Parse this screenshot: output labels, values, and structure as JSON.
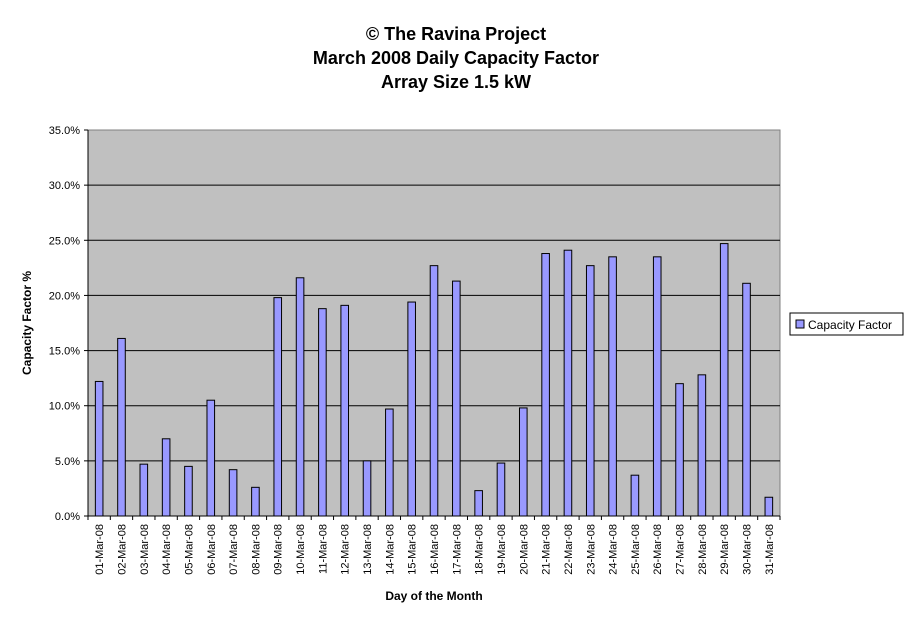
{
  "chart_data": {
    "type": "bar",
    "title_lines": [
      "© The Ravina Project",
      "March 2008 Daily Capacity Factor",
      "Array Size 1.5 kW"
    ],
    "xlabel": "Day of the Month",
    "ylabel": "Capacity Factor %",
    "ylim": [
      0,
      35
    ],
    "yticks": [
      "0.0%",
      "5.0%",
      "10.0%",
      "15.0%",
      "20.0%",
      "25.0%",
      "30.0%",
      "35.0%"
    ],
    "grid": true,
    "legend_position": "right",
    "categories": [
      "01-Mar-08",
      "02-Mar-08",
      "03-Mar-08",
      "04-Mar-08",
      "05-Mar-08",
      "06-Mar-08",
      "07-Mar-08",
      "08-Mar-08",
      "09-Mar-08",
      "10-Mar-08",
      "11-Mar-08",
      "12-Mar-08",
      "13-Mar-08",
      "14-Mar-08",
      "15-Mar-08",
      "16-Mar-08",
      "17-Mar-08",
      "18-Mar-08",
      "19-Mar-08",
      "20-Mar-08",
      "21-Mar-08",
      "22-Mar-08",
      "23-Mar-08",
      "24-Mar-08",
      "25-Mar-08",
      "26-Mar-08",
      "27-Mar-08",
      "28-Mar-08",
      "29-Mar-08",
      "30-Mar-08",
      "31-Mar-08"
    ],
    "series": [
      {
        "name": "Capacity Factor",
        "color": "#9999ff",
        "values": [
          12.2,
          16.1,
          4.7,
          7.0,
          4.5,
          10.5,
          4.2,
          2.6,
          19.8,
          21.6,
          18.8,
          19.1,
          5.0,
          9.7,
          19.4,
          22.7,
          21.3,
          2.3,
          4.8,
          9.8,
          23.8,
          24.1,
          22.7,
          23.5,
          3.7,
          23.5,
          12.0,
          12.8,
          24.7,
          21.1,
          1.7
        ]
      }
    ],
    "colors": {
      "plot_background": "#c0c0c0",
      "bar_fill": "#9999ff",
      "bar_stroke": "#000000",
      "grid": "#000000"
    }
  }
}
